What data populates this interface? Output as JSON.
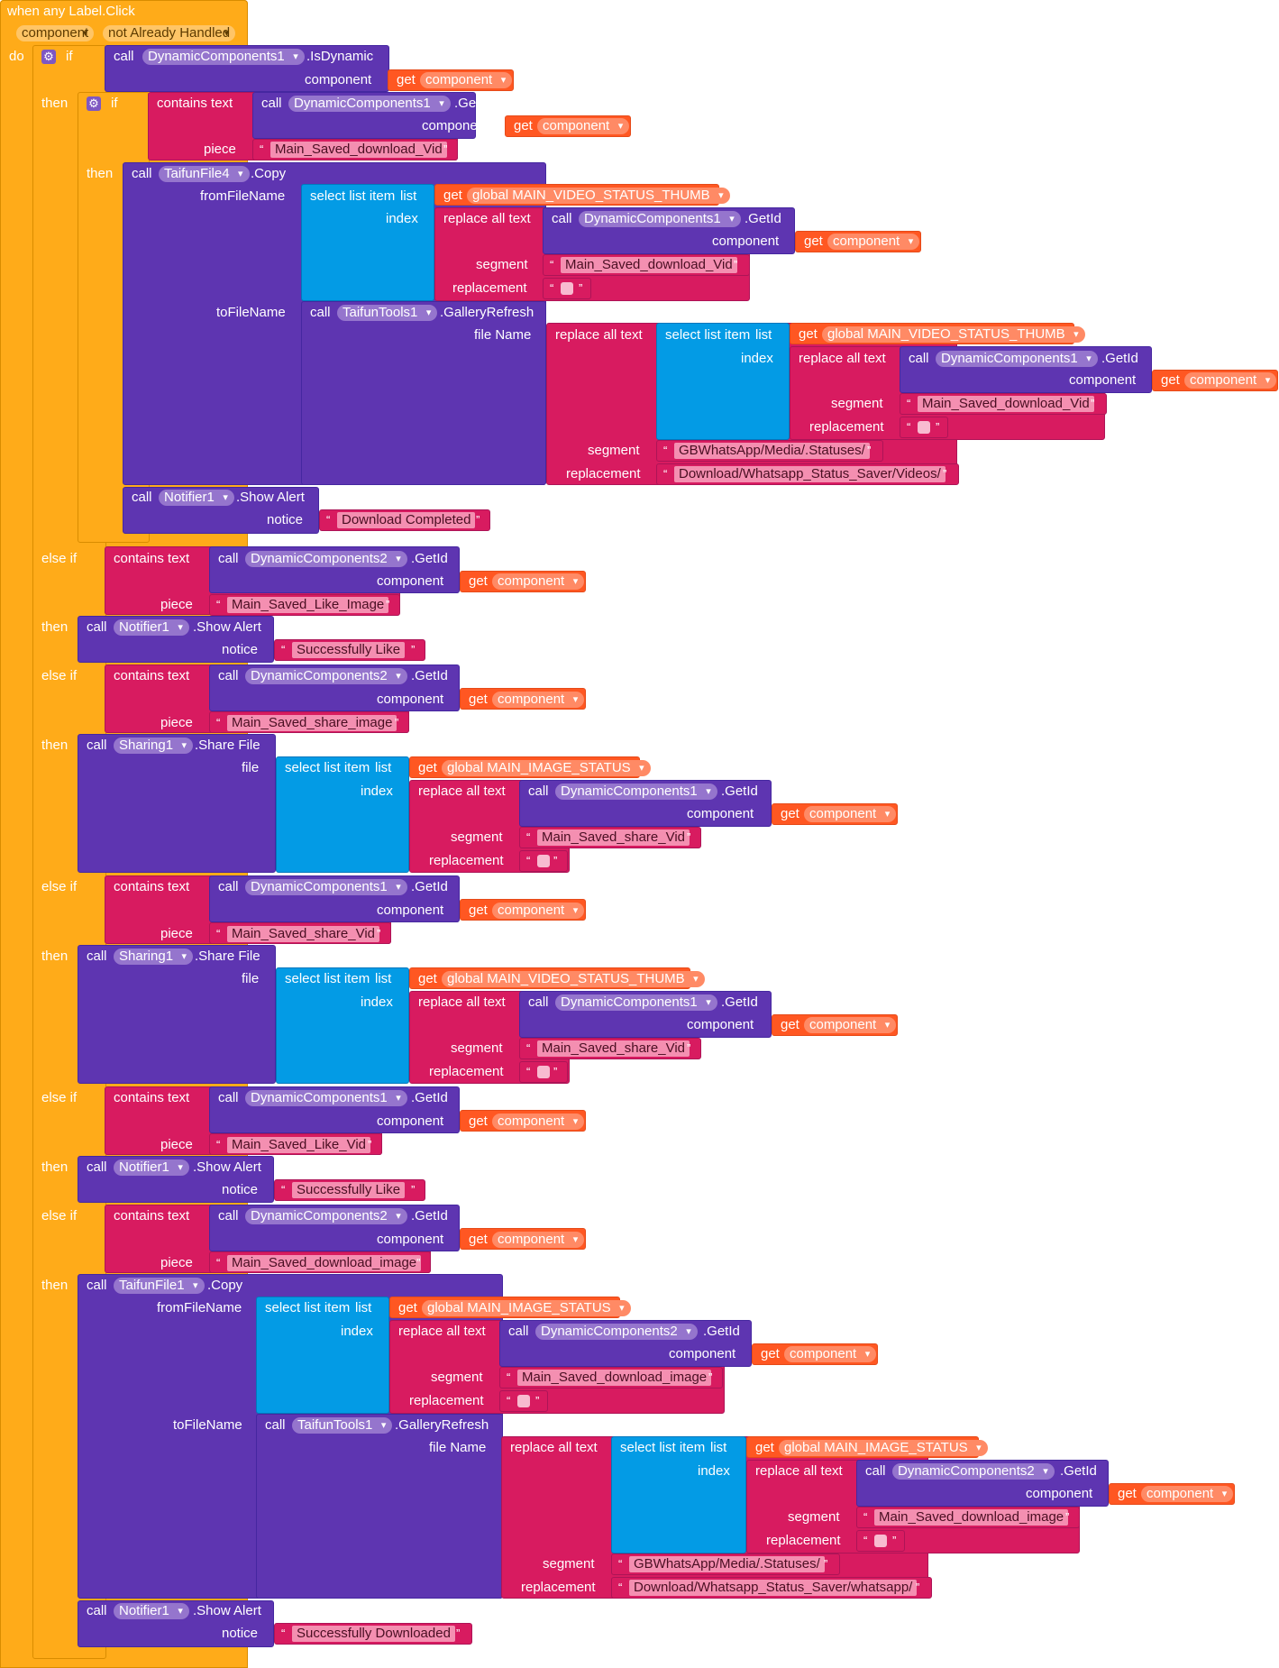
{
  "event": {
    "title": "when any Label.Click",
    "param1": "component",
    "param2": "not Already Handled",
    "do": "do"
  },
  "kw": {
    "if": "if",
    "then": "then",
    "else_if": "else if",
    "call": "call",
    "get": "get",
    "contains_text": "contains text",
    "piece": "piece",
    "component": "component",
    "select_list_item": "select list item",
    "list": "list",
    "index": "index",
    "replace_all_text": "replace all text",
    "segment": "segment",
    "replacement": "replacement",
    "from_file_name": "fromFileName",
    "to_file_name": "toFileName",
    "file_name": "file Name",
    "notice": "notice",
    "file": "file"
  },
  "methods": {
    "is_dynamic": ".IsDynamic",
    "get_id": ".GetId",
    "copy": ".Copy",
    "gallery_refresh": ".GalleryRefresh",
    "show_alert": ".Show Alert",
    "share_file": ".Share File"
  },
  "components": {
    "dyn1": "DynamicComponents1",
    "dyn2": "DynamicComponents2",
    "taifun_file4": "TaifunFile4",
    "taifun_file1": "TaifunFile1",
    "taifun_tools1": "TaifunTools1",
    "notifier1": "Notifier1",
    "sharing1": "Sharing1"
  },
  "vars": {
    "component": "component",
    "video_thumb": "global MAIN_VIDEO_STATUS_THUMB",
    "image_status": "global MAIN_IMAGE_STATUS"
  },
  "strings": {
    "main_saved_download_vid": "Main_Saved_download_Vid",
    "statuses_path": "GBWhatsApp/Media/.Statuses/",
    "videos_path": "Download/Whatsapp_Status_Saver/Videos/",
    "download_completed": "Download Completed",
    "main_saved_like_image": "Main_Saved_Like_Image",
    "successfully_like": "Successfully Like",
    "main_saved_share_image": "Main_Saved_share_image",
    "main_saved_share_vid": "Main_Saved_share_Vid",
    "main_saved_like_vid": "Main_Saved_Like_Vid",
    "main_saved_download_image": "Main_Saved_download_image",
    "whatsapp_path": "Download/Whatsapp_Status_Saver/whatsapp/",
    "successfully_downloaded": "Successfully Downloaded"
  },
  "colors": {
    "control": "#ffab19",
    "procedure": "#5e35b1",
    "text": "#d81b60",
    "list": "#039be5",
    "variable": "#ff5722"
  }
}
